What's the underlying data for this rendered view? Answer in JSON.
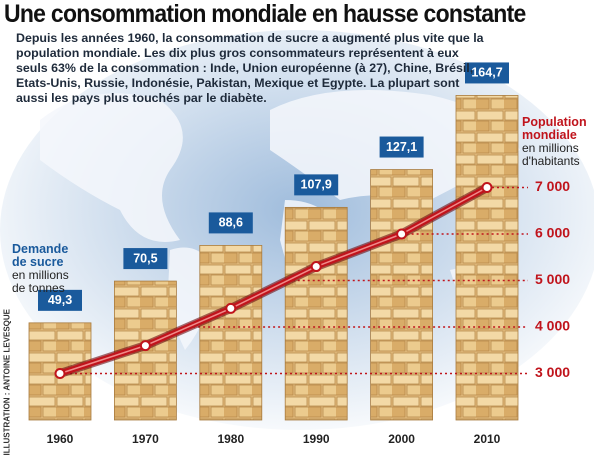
{
  "chart_data": {
    "type": "bar",
    "title": "Une consommation mondiale en hausse constante",
    "subtitle": "Depuis les années 1960, la consommation de sucre a augmenté plus vite que la population mondiale. Les dix plus gros consommateurs représentent à eux seuls 63% de la consommation : Inde, Union européenne (à 27), Chine, Brésil, Etats-Unis, Russie, Indonésie, Pakistan, Mexique et Egypte. La plupart sont aussi les pays plus touchés par le diabète.",
    "credit": "ILLUSTRATION : ANTOINE LEVESQUE",
    "categories": [
      "1960",
      "1970",
      "1980",
      "1990",
      "2000",
      "2010"
    ],
    "series": [
      {
        "name": "Demande de sucre",
        "unit_label": "en millions de tonnes",
        "color": "#e0b878",
        "values": [
          49.3,
          70.5,
          88.6,
          107.9,
          127.1,
          164.7
        ],
        "value_labels": [
          "49,3",
          "70,5",
          "88,6",
          "107,9",
          "127,1",
          "164,7"
        ]
      },
      {
        "name": "Population mondiale",
        "unit_label": "en millions d'habitants",
        "type": "line",
        "axis": "y2",
        "color": "#c0141c",
        "values": [
          3000,
          3600,
          4400,
          5300,
          6000,
          7000
        ]
      }
    ],
    "ylim": [
      0,
      170
    ],
    "y2lim": [
      2000,
      8000
    ],
    "y2ticks": [
      {
        "value": 3000,
        "label": "3 000"
      },
      {
        "value": 4000,
        "label": "4 000"
      },
      {
        "value": 5000,
        "label": "5 000"
      },
      {
        "value": 6000,
        "label": "6 000"
      },
      {
        "value": 7000,
        "label": "7 000"
      }
    ]
  }
}
